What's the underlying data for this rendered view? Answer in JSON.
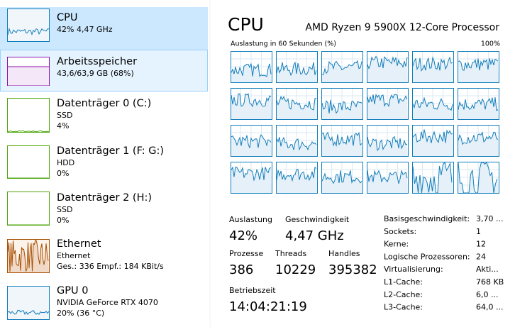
{
  "sidebar": [
    {
      "title": "CPU",
      "lines": [
        "42% 4,47 GHz"
      ]
    },
    {
      "title": "Arbeitsspeicher",
      "lines": [
        "43,6/63,9 GB (68%)"
      ]
    },
    {
      "title": "Datenträger 0 (C:)",
      "lines": [
        "SSD",
        "4%"
      ]
    },
    {
      "title": "Datenträger 1 (F: G:)",
      "lines": [
        "HDD",
        "0%"
      ]
    },
    {
      "title": "Datenträger 2 (H:)",
      "lines": [
        "SSD",
        "0%"
      ]
    },
    {
      "title": "Ethernet",
      "lines": [
        "Ethernet",
        "Ges.: 336 Empf.: 184 KBit/s"
      ]
    },
    {
      "title": "GPU 0",
      "lines": [
        "NVIDIA GeForce RTX 4070",
        "20% (36 °C)"
      ]
    }
  ],
  "header": {
    "title": "CPU",
    "processor": "AMD Ryzen 9 5900X 12-Core Processor"
  },
  "graph": {
    "label": "Auslastung in 60 Sekunden (%)",
    "max": "100%"
  },
  "stats": [
    {
      "label": "Auslastung",
      "value": "42%"
    },
    {
      "label": "Geschwindigkeit",
      "value": "4,47 GHz"
    },
    {
      "label": "Prozesse",
      "value": "386"
    },
    {
      "label": "Threads",
      "value": "10229"
    },
    {
      "label": "Handles",
      "value": "395382"
    },
    {
      "label": "Betriebszeit",
      "value": "14:04:21:19"
    }
  ],
  "details": [
    {
      "label": "Basisgeschwindigkeit:",
      "value": "3,70 ..."
    },
    {
      "label": "Sockets:",
      "value": "1"
    },
    {
      "label": "Kerne:",
      "value": "12"
    },
    {
      "label": "Logische Prozessoren:",
      "value": "24"
    },
    {
      "label": "Virtualisierung:",
      "value": "Akti..."
    },
    {
      "label": "L1-Cache:",
      "value": "768 KB"
    },
    {
      "label": "L2-Cache:",
      "value": "6,0 ..."
    },
    {
      "label": "L3-Cache:",
      "value": "64,0 ..."
    }
  ]
}
